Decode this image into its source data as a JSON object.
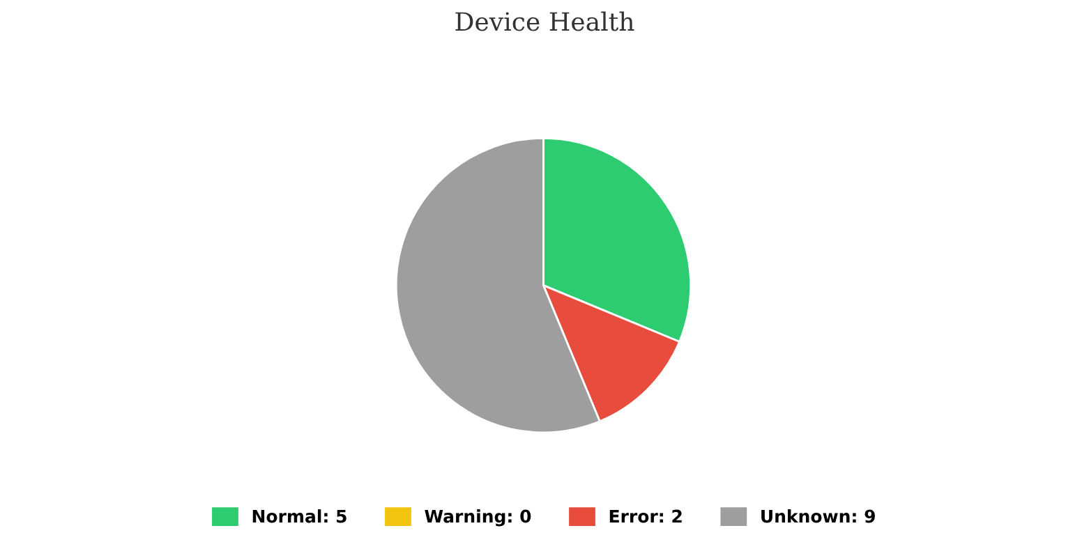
{
  "chart_data": {
    "type": "pie",
    "title": "Device Health",
    "categories": [
      "Normal: 5",
      "Warning: 0",
      "Error: 2",
      "Unknown: 9"
    ],
    "values": [
      5,
      0,
      2,
      9
    ],
    "colors": [
      "#2ecc71",
      "#f1c40f",
      "#e74c3c",
      "#9e9e9e"
    ],
    "legend": "bottom"
  }
}
